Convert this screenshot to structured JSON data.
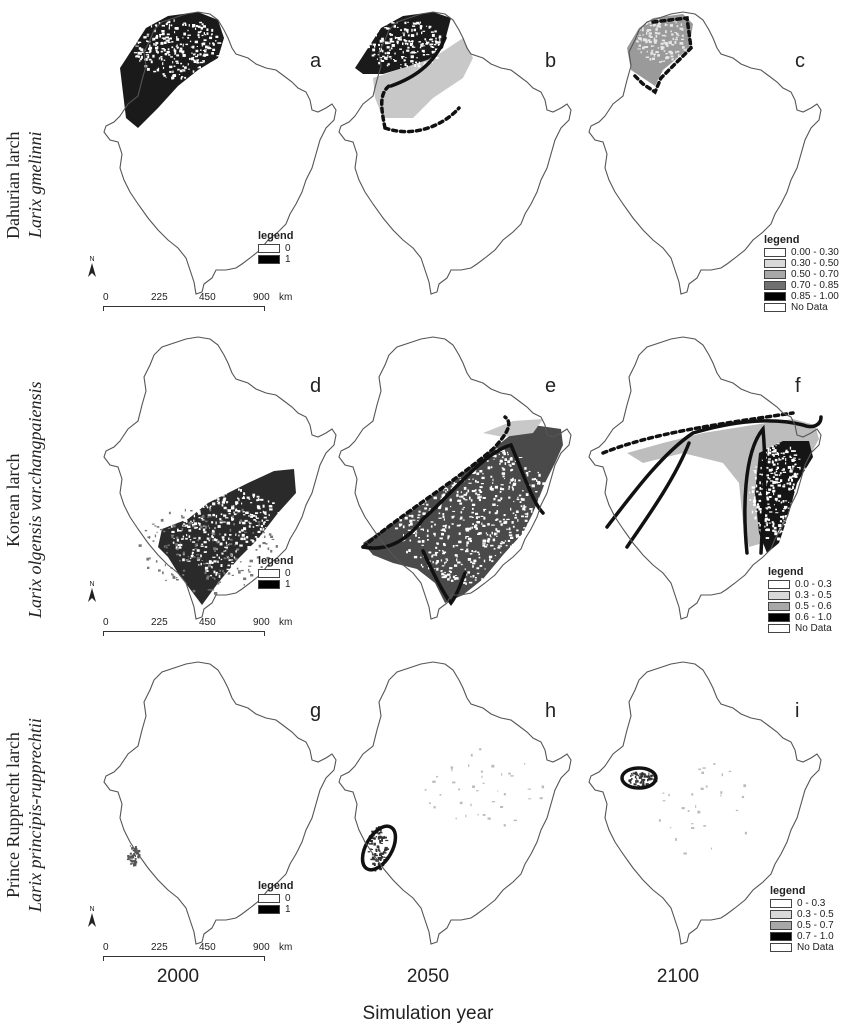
{
  "rows": [
    {
      "common": "Dahurian larch",
      "species": "Larix gmelinni"
    },
    {
      "common": "Korean larch",
      "species": "Larix olgensis var.changpaiensis"
    },
    {
      "common": "Prince Rupprecht  larch",
      "species": "Larix principis-rupprechtii"
    }
  ],
  "panels": [
    "a",
    "b",
    "c",
    "d",
    "e",
    "f",
    "g",
    "h",
    "i"
  ],
  "legend_binary": {
    "title": "legend",
    "items": [
      "0",
      "1"
    ]
  },
  "legend_c": {
    "title": "legend",
    "items": [
      "0.00 - 0.30",
      "0.30 - 0.50",
      "0.50 - 0.70",
      "0.70 - 0.85",
      "0.85 - 1.00",
      "No Data"
    ]
  },
  "legend_f": {
    "title": "legend",
    "items": [
      "0.0 - 0.3",
      "0.3 - 0.5",
      "0.5 - 0.6",
      "0.6 - 1.0",
      "No Data"
    ]
  },
  "legend_i": {
    "title": "legend",
    "items": [
      "0 - 0.3",
      "0.3 - 0.5",
      "0.5 - 0.7",
      "0.7 - 1.0",
      "No Data"
    ]
  },
  "legend_colors": [
    "#ffffff",
    "#d9d9d9",
    "#a8a8a8",
    "#707070",
    "#000000",
    "#ffffff"
  ],
  "scale": {
    "ticks": [
      "0",
      "225",
      "450",
      "900"
    ],
    "unit": "km"
  },
  "north_label": "N",
  "years": [
    "2000",
    "2050",
    "2100"
  ],
  "xlabel": "Simulation year"
}
